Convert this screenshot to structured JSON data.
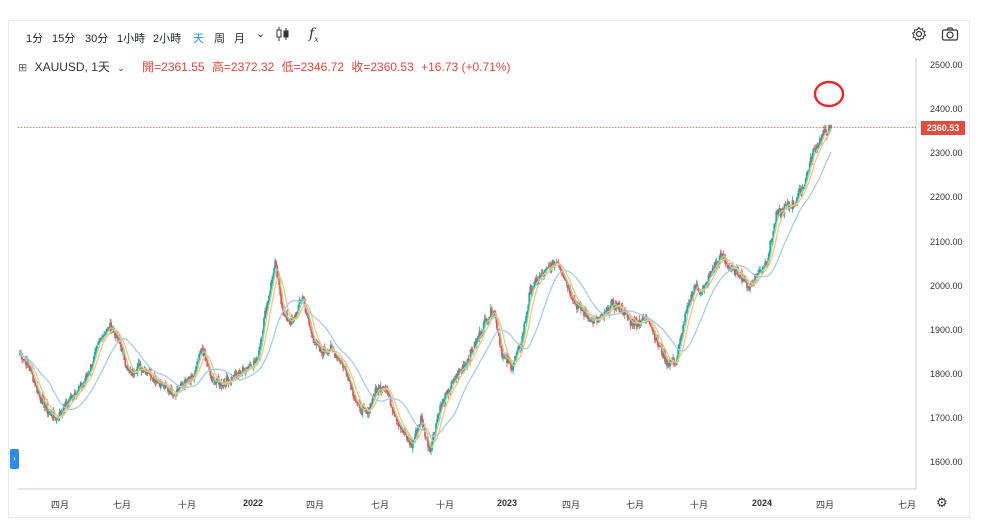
{
  "toolbar": {
    "timeframes": [
      {
        "label": "1分",
        "active": false
      },
      {
        "label": "15分",
        "active": false
      },
      {
        "label": "30分",
        "active": false
      },
      {
        "label": "1小時",
        "active": false
      },
      {
        "label": "2小時",
        "active": false
      },
      {
        "label": "天",
        "active": true
      },
      {
        "label": "周",
        "active": false
      },
      {
        "label": "月",
        "active": false
      }
    ],
    "more_glyph": "⌄",
    "candle_icon": "candlestick-icon",
    "fx_label": "f",
    "fx_sub": "x",
    "settings_icon": "gear-icon",
    "camera_icon": "camera-icon"
  },
  "legend": {
    "symbol": "XAUUSD, 1天",
    "open": "開=2361.55",
    "high": "高=2372.32",
    "low": "低=2346.72",
    "close": "收=2360.53",
    "change": "+16.73 (+0.71%)"
  },
  "price_tag": "2360.53",
  "colors": {
    "up": "#26a69a",
    "down": "#ef5350",
    "ma_fast": "#a5d6a7",
    "ma_mid": "#f5c48a",
    "ma_slow": "#a9cce3",
    "last_price": "#e34b41",
    "annotation": "#e8262b"
  },
  "chart_data": {
    "type": "candlestick",
    "title": "",
    "xlabel": "",
    "ylabel": "",
    "ylim": [
      1570,
      2530
    ],
    "grid": false,
    "y_ticks": [
      "2500.00",
      "2400.00",
      "2300.00",
      "2200.00",
      "2100.00",
      "2000.00",
      "1900.00",
      "1800.00",
      "1700.00",
      "1600.00"
    ],
    "y_tick_values": [
      2500,
      2400,
      2300,
      2200,
      2100,
      2000,
      1900,
      1800,
      1700,
      1600
    ],
    "x_ticks": [
      {
        "label": "四月",
        "bold": false
      },
      {
        "label": "七月",
        "bold": false
      },
      {
        "label": "十月",
        "bold": false
      },
      {
        "label": "2022",
        "bold": true
      },
      {
        "label": "四月",
        "bold": false
      },
      {
        "label": "七月",
        "bold": false
      },
      {
        "label": "十月",
        "bold": false
      },
      {
        "label": "2023",
        "bold": true
      },
      {
        "label": "四月",
        "bold": false
      },
      {
        "label": "七月",
        "bold": false
      },
      {
        "label": "十月",
        "bold": false
      },
      {
        "label": "2024",
        "bold": true
      },
      {
        "label": "四月",
        "bold": false
      },
      {
        "label": "七月",
        "bold": false
      }
    ],
    "last_price": 2360.53,
    "price_path": [
      1850,
      1820,
      1760,
      1720,
      1700,
      1730,
      1760,
      1780,
      1830,
      1890,
      1910,
      1870,
      1800,
      1820,
      1810,
      1790,
      1770,
      1760,
      1780,
      1790,
      1860,
      1790,
      1780,
      1790,
      1800,
      1820,
      1830,
      1950,
      2050,
      1930,
      1920,
      1980,
      1890,
      1850,
      1860,
      1840,
      1800,
      1730,
      1710,
      1760,
      1780,
      1720,
      1670,
      1640,
      1700,
      1630,
      1720,
      1760,
      1800,
      1830,
      1870,
      1920,
      1950,
      1840,
      1820,
      1870,
      1990,
      2020,
      2040,
      2060,
      2010,
      1960,
      1940,
      1920,
      1930,
      1960,
      1950,
      1920,
      1920,
      1930,
      1870,
      1830,
      1830,
      1930,
      2000,
      1990,
      2040,
      2070,
      2040,
      2030,
      2000,
      2030,
      2060,
      2160,
      2180,
      2190,
      2230,
      2300,
      2340,
      2360.53
    ],
    "annotation": {
      "shape": "circle",
      "at_index": 89
    }
  }
}
